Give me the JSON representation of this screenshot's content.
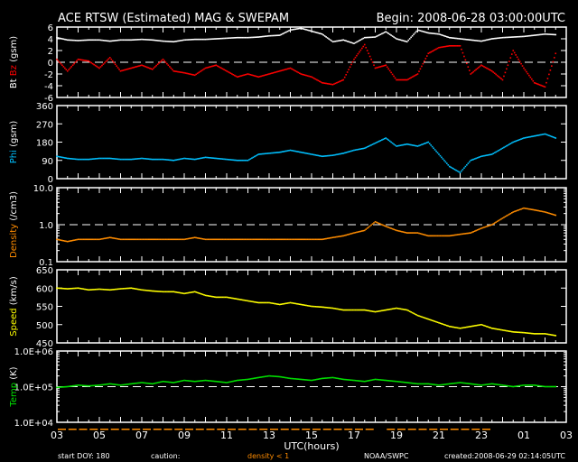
{
  "header": {
    "title": "ACE RTSW (Estimated) MAG & SWEPAM",
    "begin": "Begin: 2008-06-28 03:00:00UTC"
  },
  "footer": {
    "start_doy": "start DOY: 180",
    "caution": "caution:",
    "caution_note": "density < 1",
    "source": "NOAA/SWPC",
    "created": "created:2008-06-29 02:14:05UTC",
    "xlabel": "UTC(hours)"
  },
  "colors": {
    "bt": "#ffffff",
    "bz": "#ff0000",
    "phi": "#00c0ff",
    "density": "#ff8c00",
    "speed": "#ffff00",
    "temp": "#00e000",
    "frame": "#ffffff"
  },
  "chart_data": {
    "type": "scatter",
    "x_hours_from_start": [
      0,
      1,
      2,
      3,
      4,
      5,
      6,
      7,
      8,
      9,
      10,
      11,
      12,
      13,
      14,
      15,
      16,
      17,
      18,
      19,
      20,
      21,
      22,
      23,
      24,
      25,
      26,
      27,
      28,
      29,
      30,
      31,
      32,
      33,
      34,
      35,
      36,
      37,
      38,
      39,
      40,
      41,
      42,
      43,
      44,
      45,
      46,
      47
    ],
    "xlim": [
      0,
      48
    ],
    "x_tick_labels": [
      "03",
      "05",
      "07",
      "09",
      "11",
      "13",
      "15",
      "17",
      "19",
      "21",
      "23",
      "01",
      "03"
    ],
    "panels": [
      {
        "name": "mag",
        "ylabel_parts": [
          "Bt",
          "Bz",
          "(gsm)"
        ],
        "ylim": [
          -6,
          6
        ],
        "scale": "linear",
        "y_ticks": [
          -6,
          -4,
          -2,
          0,
          2,
          4,
          6
        ],
        "y_tick_labels": [
          "-6",
          "-4",
          "-2",
          "0",
          "2",
          "4",
          "6"
        ],
        "reference_line": 0,
        "series": [
          {
            "name": "Bt",
            "color_key": "bt",
            "values": [
              4.2,
              3.8,
              3.7,
              3.8,
              3.8,
              3.6,
              3.8,
              3.8,
              3.9,
              3.8,
              3.6,
              3.5,
              3.8,
              3.9,
              3.9,
              4.0,
              4.1,
              4.2,
              4.2,
              4.3,
              4.5,
              4.6,
              5.5,
              5.8,
              5.3,
              4.8,
              3.5,
              3.8,
              3.2,
              4.2,
              4.3,
              5.2,
              4.0,
              3.5,
              5.5,
              5.0,
              4.8,
              4.2,
              4.0,
              3.8,
              3.6,
              4.0,
              4.2,
              4.3,
              4.4,
              4.6,
              4.8,
              4.7
            ]
          },
          {
            "name": "Bz",
            "color_key": "bz",
            "values": [
              0.5,
              -1.5,
              0.5,
              0.2,
              -1.0,
              0.8,
              -1.5,
              -1.0,
              -0.5,
              -1.2,
              0.5,
              -1.5,
              -1.8,
              -2.2,
              -1.0,
              -0.5,
              -1.5,
              -2.5,
              -2.0,
              -2.5,
              -2.0,
              -1.5,
              -1.0,
              -2.0,
              -2.5,
              -3.5,
              -3.8,
              -3.0,
              0.5,
              3.0,
              -1.0,
              -0.5,
              -3.0,
              -3.0,
              -2.0,
              1.5,
              2.5,
              2.8,
              2.8,
              -2.0,
              -0.5,
              -1.5,
              -3.0,
              2.0,
              -1.0,
              -3.5,
              -4.2,
              1.5
            ]
          }
        ]
      },
      {
        "name": "phi",
        "ylabel_parts": [
          "Phi",
          "(gsm)"
        ],
        "ylim": [
          0,
          360
        ],
        "scale": "linear",
        "y_ticks": [
          0,
          90,
          180,
          270,
          360
        ],
        "y_tick_labels": [
          "0",
          "90",
          "180",
          "270",
          "360"
        ],
        "series": [
          {
            "name": "Phi",
            "color_key": "phi",
            "values": [
              110,
              100,
              95,
              95,
              100,
              100,
              95,
              95,
              100,
              95,
              95,
              90,
              100,
              95,
              105,
              100,
              95,
              90,
              90,
              120,
              125,
              130,
              140,
              130,
              120,
              110,
              115,
              125,
              140,
              150,
              175,
              200,
              160,
              170,
              160,
              180,
              120,
              60,
              30,
              90,
              110,
              120,
              150,
              180,
              200,
              210,
              220,
              200
            ]
          }
        ]
      },
      {
        "name": "density",
        "ylabel_parts": [
          "Density",
          "(/cm3)"
        ],
        "ylim": [
          0.1,
          10
        ],
        "scale": "log",
        "y_ticks": [
          0.1,
          1,
          10
        ],
        "y_tick_labels": [
          "0.1",
          "1.0",
          "10.0"
        ],
        "reference_line": 1,
        "series": [
          {
            "name": "Density",
            "color_key": "density",
            "values": [
              0.4,
              0.35,
              0.4,
              0.4,
              0.4,
              0.45,
              0.4,
              0.4,
              0.4,
              0.4,
              0.4,
              0.4,
              0.4,
              0.45,
              0.4,
              0.4,
              0.4,
              0.4,
              0.4,
              0.4,
              0.4,
              0.4,
              0.4,
              0.4,
              0.4,
              0.4,
              0.45,
              0.5,
              0.6,
              0.7,
              1.2,
              0.9,
              0.7,
              0.6,
              0.6,
              0.5,
              0.5,
              0.5,
              0.55,
              0.6,
              0.8,
              1.0,
              1.5,
              2.2,
              2.8,
              2.5,
              2.2,
              1.8
            ]
          }
        ]
      },
      {
        "name": "speed",
        "ylabel_parts": [
          "Speed",
          "(km/s)"
        ],
        "ylim": [
          450,
          650
        ],
        "scale": "linear",
        "y_ticks": [
          450,
          500,
          550,
          600,
          650
        ],
        "y_tick_labels": [
          "450",
          "500",
          "550",
          "600",
          "650"
        ],
        "series": [
          {
            "name": "Speed",
            "color_key": "speed",
            "values": [
              600,
              598,
              600,
              595,
              597,
              595,
              598,
              600,
              595,
              592,
              590,
              590,
              585,
              590,
              580,
              575,
              575,
              570,
              565,
              560,
              560,
              555,
              560,
              555,
              550,
              548,
              545,
              540,
              540,
              540,
              535,
              540,
              545,
              540,
              525,
              515,
              505,
              495,
              490,
              495,
              500,
              490,
              485,
              480,
              478,
              475,
              475,
              470
            ]
          }
        ]
      },
      {
        "name": "temp",
        "ylabel_parts": [
          "Temp",
          "(K)"
        ],
        "ylim": [
          10000,
          1000000
        ],
        "scale": "log",
        "y_ticks": [
          10000,
          100000,
          1000000
        ],
        "y_tick_labels": [
          "1.0E+04",
          "1.0E+05",
          "1.0E+06"
        ],
        "reference_line": 100000,
        "series": [
          {
            "name": "Temp",
            "color_key": "temp",
            "values": [
              95000,
              100000,
              110000,
              105000,
              110000,
              120000,
              110000,
              120000,
              130000,
              120000,
              140000,
              130000,
              150000,
              140000,
              150000,
              140000,
              130000,
              150000,
              160000,
              180000,
              200000,
              190000,
              170000,
              160000,
              150000,
              170000,
              180000,
              160000,
              150000,
              140000,
              160000,
              150000,
              140000,
              130000,
              120000,
              120000,
              110000,
              120000,
              130000,
              120000,
              110000,
              120000,
              110000,
              100000,
              110000,
              110000,
              100000,
              100000
            ]
          }
        ]
      }
    ]
  }
}
